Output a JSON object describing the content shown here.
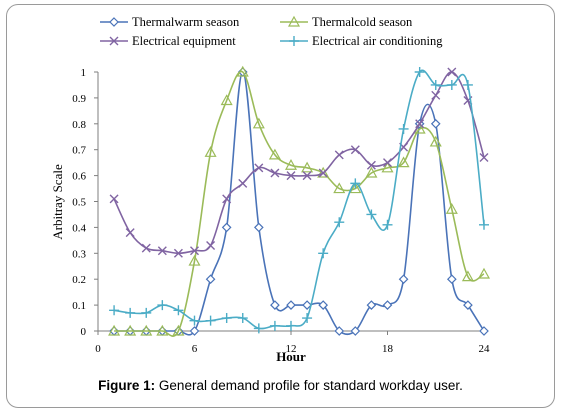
{
  "caption": {
    "label": "Figure 1:",
    "text": " General demand profile for standard workday user."
  },
  "chart_data": {
    "type": "line",
    "xlabel": "Hour",
    "ylabel": "Arbitray Scale",
    "xlim": [
      0,
      24
    ],
    "ylim": [
      0,
      1
    ],
    "xticks": [
      0,
      6,
      12,
      18,
      24
    ],
    "yticks": [
      0,
      0.1,
      0.2,
      0.3,
      0.4,
      0.5,
      0.6,
      0.7,
      0.8,
      0.9,
      1
    ],
    "xtick_labels": [
      "0",
      "6",
      "12",
      "18",
      "24"
    ],
    "ytick_labels": [
      "0",
      "0.1",
      "0.2",
      "0.3",
      "0.4",
      "0.5",
      "0.6",
      "0.7",
      "0.8",
      "0.9",
      "1"
    ],
    "grid": false,
    "legend_position": "top",
    "x": [
      1,
      2,
      3,
      4,
      5,
      6,
      7,
      8,
      9,
      10,
      11,
      12,
      13,
      14,
      15,
      16,
      17,
      18,
      19,
      20,
      21,
      22,
      23,
      24
    ],
    "series": [
      {
        "name": "Thermalwarm season",
        "marker": "diamond",
        "color": "#4a73b8",
        "values": [
          0,
          0,
          0,
          0,
          0,
          0,
          0.2,
          0.4,
          1.0,
          0.4,
          0.1,
          0.1,
          0.1,
          0.1,
          0,
          0,
          0.1,
          0.1,
          0.2,
          0.8,
          0.8,
          0.2,
          0.1,
          0
        ]
      },
      {
        "name": "Thermalcold season",
        "marker": "triangle",
        "color": "#9bbb59",
        "values": [
          0,
          0,
          0,
          0,
          0,
          0.27,
          0.69,
          0.89,
          1.0,
          0.8,
          0.68,
          0.64,
          0.63,
          0.61,
          0.55,
          0.55,
          0.61,
          0.63,
          0.65,
          0.78,
          0.73,
          0.47,
          0.21,
          0.22
        ]
      },
      {
        "name": "Electrical equipment",
        "marker": "x",
        "color": "#8064a2",
        "values": [
          0.51,
          0.38,
          0.32,
          0.31,
          0.3,
          0.31,
          0.33,
          0.51,
          0.57,
          0.63,
          0.61,
          0.6,
          0.6,
          0.61,
          0.68,
          0.7,
          0.64,
          0.65,
          0.71,
          0.8,
          0.91,
          1.0,
          0.89,
          0.67
        ]
      },
      {
        "name": "Electrical air conditioning",
        "marker": "plus",
        "color": "#4bacc6",
        "values": [
          0.08,
          0.07,
          0.07,
          0.1,
          0.08,
          0.04,
          0.04,
          0.05,
          0.05,
          0.01,
          0.02,
          0.02,
          0.05,
          0.3,
          0.42,
          0.57,
          0.45,
          0.41,
          0.78,
          1.0,
          0.95,
          0.95,
          0.95,
          0.41
        ]
      }
    ]
  }
}
